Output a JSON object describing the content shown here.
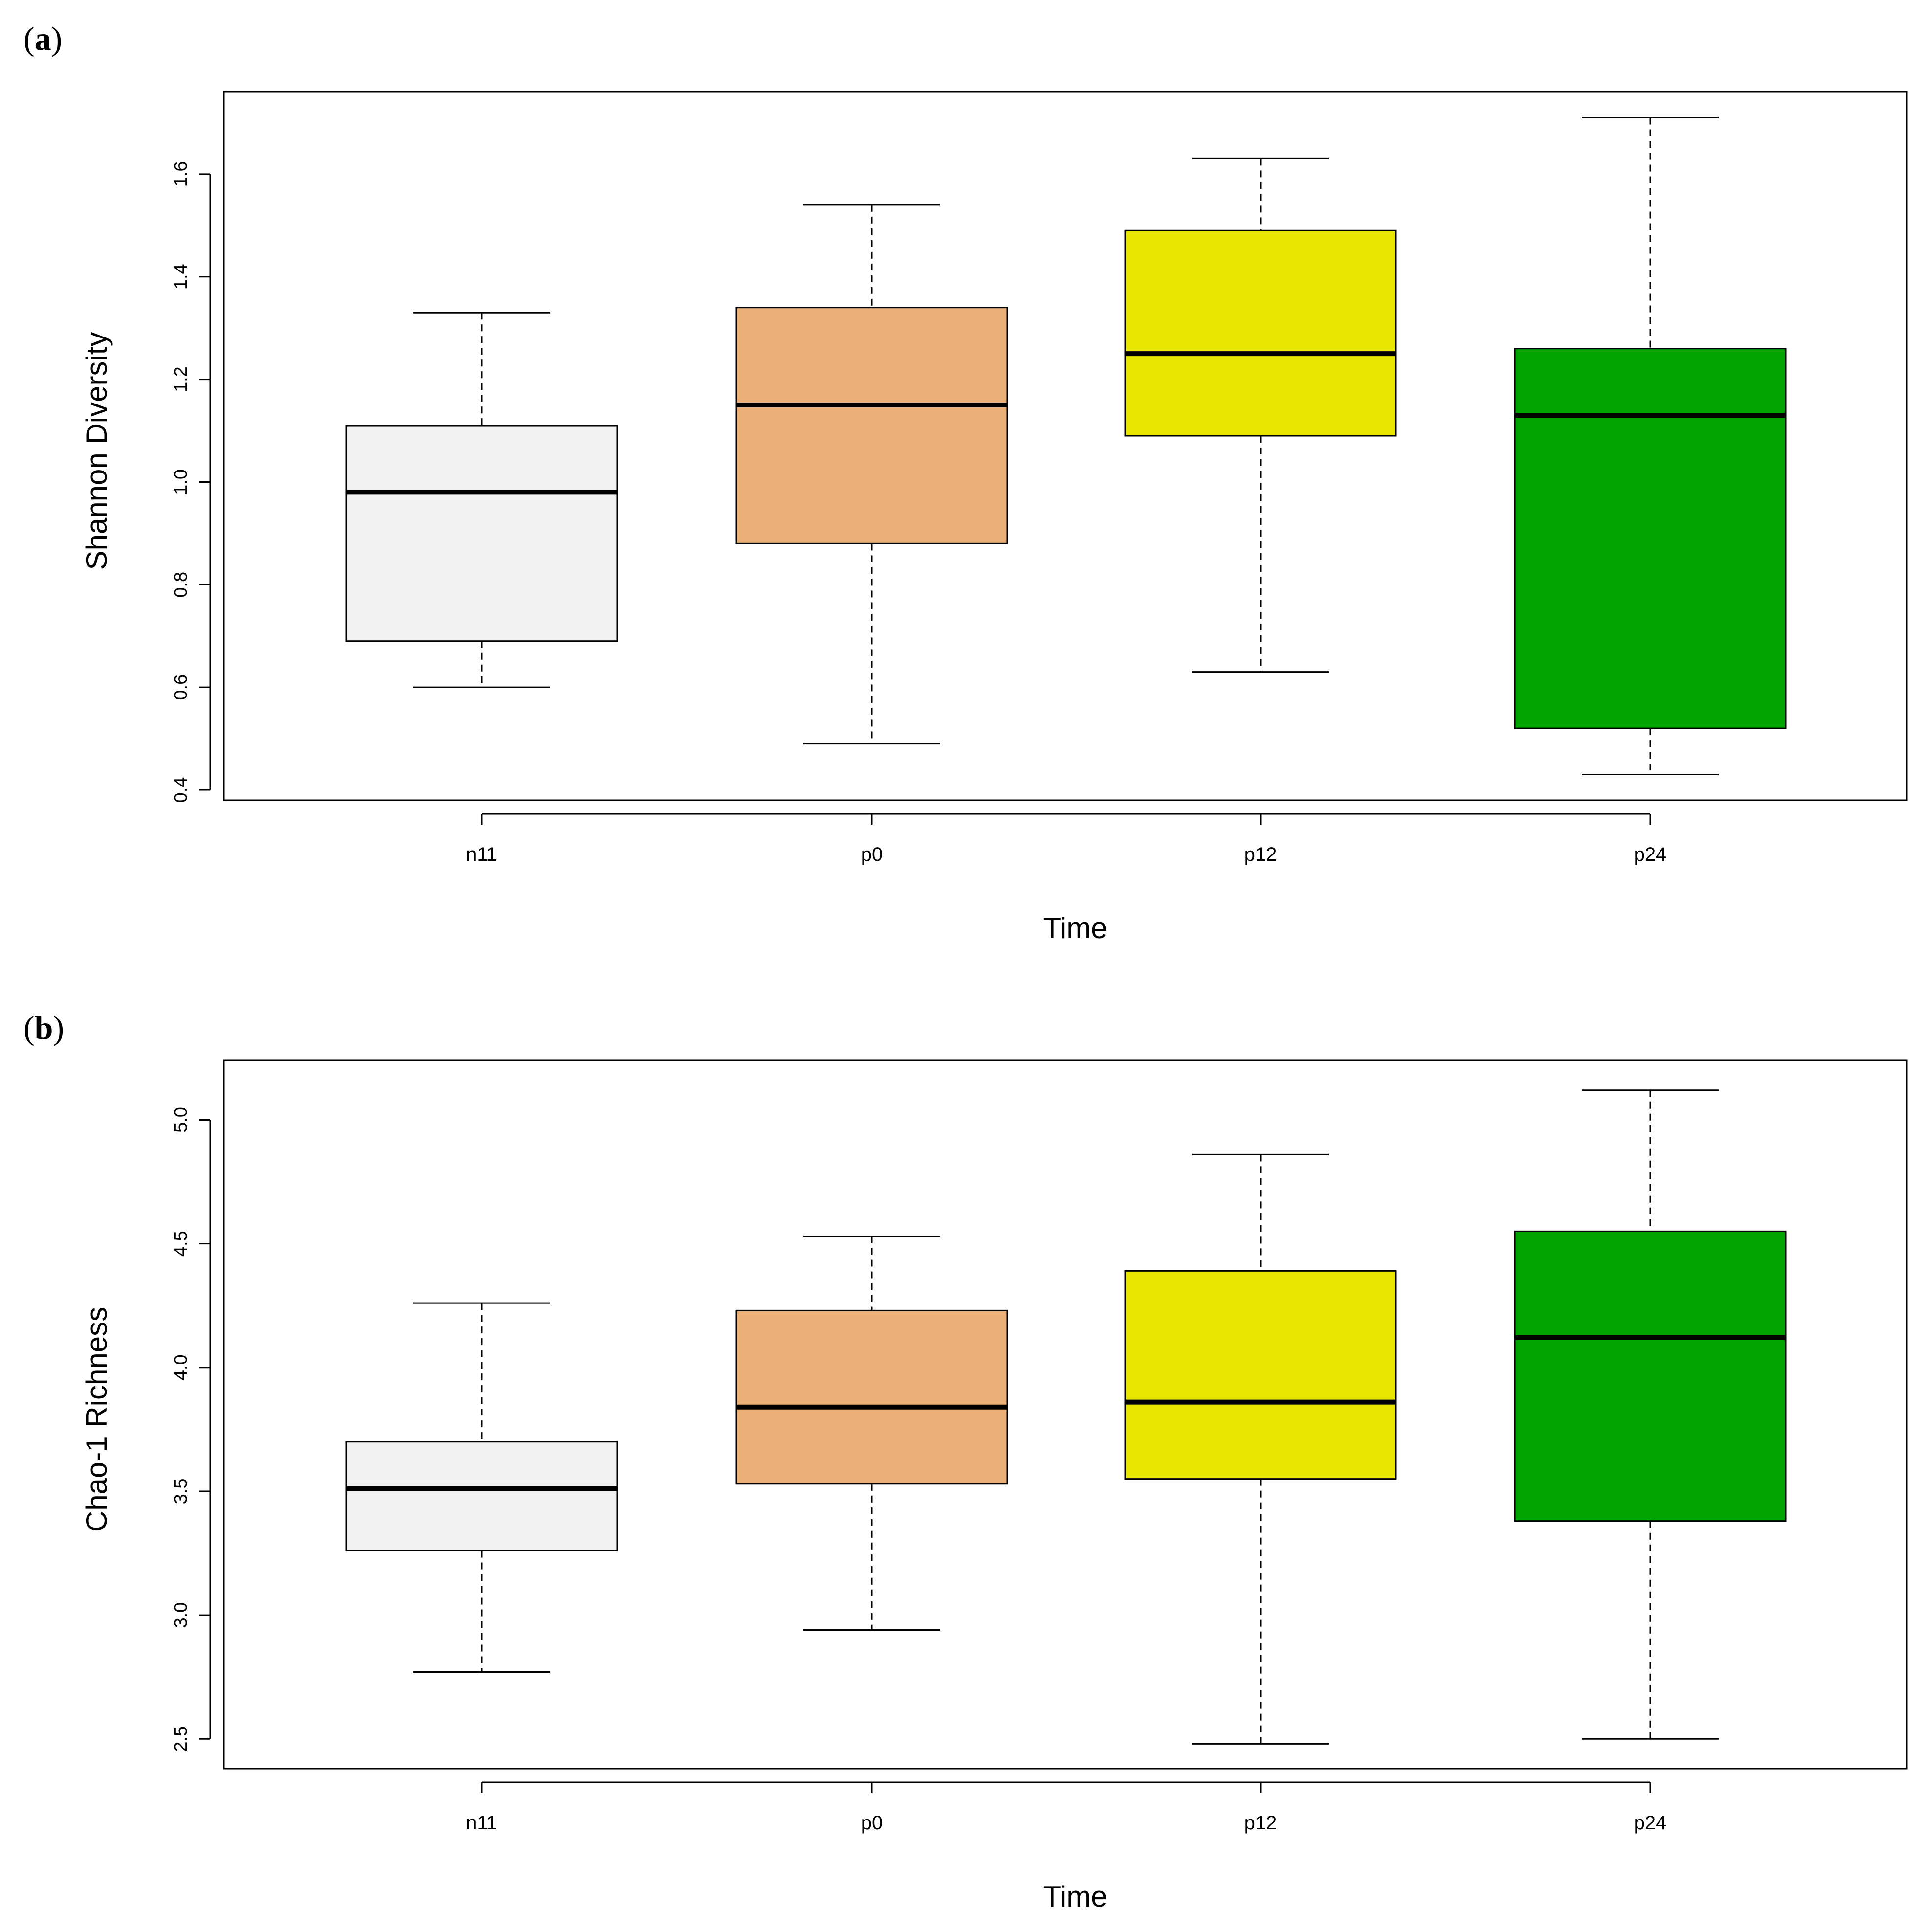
{
  "chart_data": [
    {
      "panel": "a",
      "type": "box",
      "xlabel": "Time",
      "ylabel": "Shannon Diversity",
      "categories": [
        "n11",
        "p0",
        "p12",
        "p24"
      ],
      "colors": [
        "#f2f2f2",
        "#eab077",
        "#e6e600",
        "#00a300"
      ],
      "ylim": [
        0.38,
        1.76
      ],
      "yticks": [
        0.4,
        0.6,
        0.8,
        1.0,
        1.2,
        1.4,
        1.6
      ],
      "ytick_labels": [
        "0.4",
        "0.6",
        "0.8",
        "1.0",
        "1.2",
        "1.4",
        "1.6"
      ],
      "series": [
        {
          "name": "n11",
          "min": 0.6,
          "q1": 0.69,
          "median": 0.98,
          "q3": 1.11,
          "max": 1.33
        },
        {
          "name": "p0",
          "min": 0.49,
          "q1": 0.88,
          "median": 1.15,
          "q3": 1.34,
          "max": 1.54
        },
        {
          "name": "p12",
          "min": 0.63,
          "q1": 1.09,
          "median": 1.25,
          "q3": 1.49,
          "max": 1.63
        },
        {
          "name": "p24",
          "min": 0.43,
          "q1": 0.52,
          "median": 1.13,
          "q3": 1.26,
          "max": 1.71
        }
      ]
    },
    {
      "panel": "b",
      "type": "box",
      "xlabel": "Time",
      "ylabel": "Chao-1 Richness",
      "categories": [
        "n11",
        "p0",
        "p12",
        "p24"
      ],
      "colors": [
        "#f2f2f2",
        "#eab077",
        "#e6e600",
        "#00a300"
      ],
      "ylim": [
        2.38,
        5.24
      ],
      "yticks": [
        2.5,
        3.0,
        3.5,
        4.0,
        4.5,
        5.0
      ],
      "ytick_labels": [
        "2.5",
        "3.0",
        "3.5",
        "4.0",
        "4.5",
        "5.0"
      ],
      "series": [
        {
          "name": "n11",
          "min": 2.77,
          "q1": 3.26,
          "median": 3.51,
          "q3": 3.7,
          "max": 4.26
        },
        {
          "name": "p0",
          "min": 2.94,
          "q1": 3.53,
          "median": 3.84,
          "q3": 4.23,
          "max": 4.53
        },
        {
          "name": "p12",
          "min": 2.48,
          "q1": 3.55,
          "median": 3.86,
          "q3": 4.39,
          "max": 4.86
        },
        {
          "name": "p24",
          "min": 2.5,
          "q1": 3.38,
          "median": 4.12,
          "q3": 4.55,
          "max": 5.12
        }
      ]
    }
  ],
  "panels": {
    "a": {
      "letter": "a",
      "open": "(",
      "close": ")"
    },
    "b": {
      "letter": "b",
      "open": "(",
      "close": ")"
    }
  }
}
